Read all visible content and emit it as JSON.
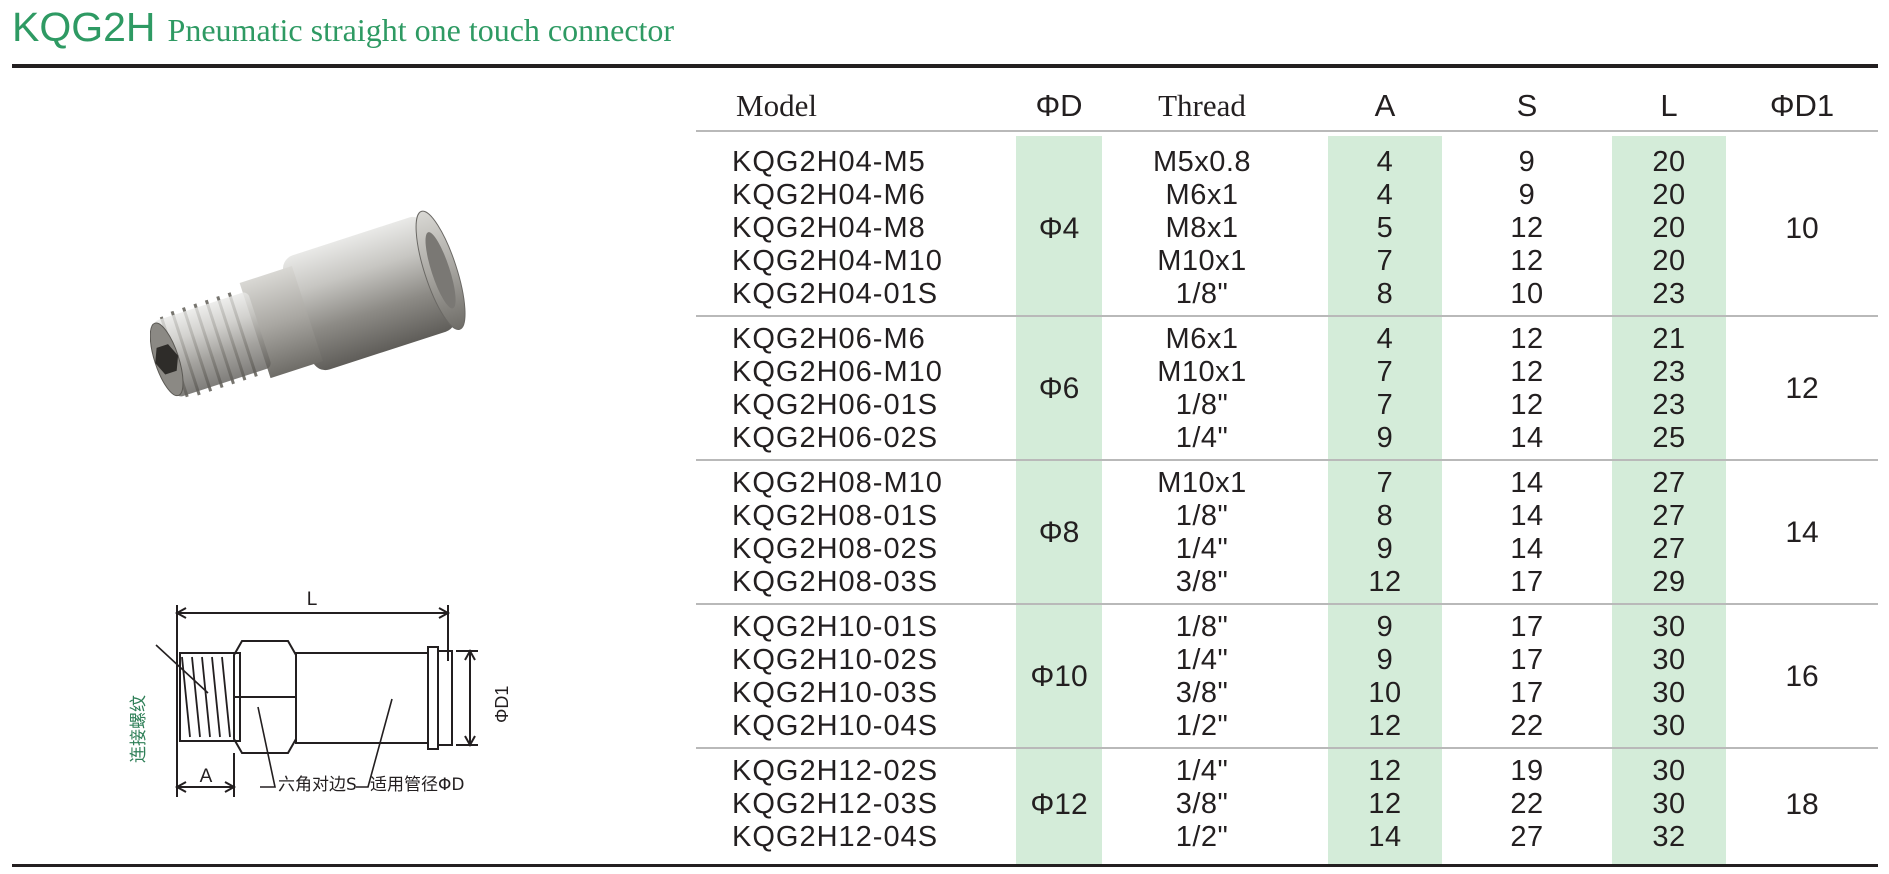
{
  "title": {
    "code": "KQG2H",
    "description": "Pneumatic straight one touch connector"
  },
  "photo": {
    "alt": "Nickel-plated brass straight connector with hex body and push-in tube fitting"
  },
  "drawing": {
    "label_L": "L",
    "label_A": "A",
    "label_D1": "ΦD1",
    "label_thread": "连接螺纹",
    "label_hex": "六角对边S",
    "label_tube": "适用管径ΦD"
  },
  "table": {
    "headers": [
      "Model",
      "ΦD",
      "Thread",
      "A",
      "S",
      "L",
      "ΦD1"
    ],
    "groups": [
      {
        "d": "Φ4",
        "d1": "10",
        "rows": [
          {
            "model": "KQG2H04-M5",
            "thread": "M5x0.8",
            "a": "4",
            "s": "9",
            "l": "20"
          },
          {
            "model": "KQG2H04-M6",
            "thread": "M6x1",
            "a": "4",
            "s": "9",
            "l": "20"
          },
          {
            "model": "KQG2H04-M8",
            "thread": "M8x1",
            "a": "5",
            "s": "12",
            "l": "20"
          },
          {
            "model": "KQG2H04-M10",
            "thread": "M10x1",
            "a": "7",
            "s": "12",
            "l": "20"
          },
          {
            "model": "KQG2H04-01S",
            "thread": "1/8\"",
            "a": "8",
            "s": "10",
            "l": "23"
          }
        ]
      },
      {
        "d": "Φ6",
        "d1": "12",
        "rows": [
          {
            "model": "KQG2H06-M6",
            "thread": "M6x1",
            "a": "4",
            "s": "12",
            "l": "21"
          },
          {
            "model": "KQG2H06-M10",
            "thread": "M10x1",
            "a": "7",
            "s": "12",
            "l": "23"
          },
          {
            "model": "KQG2H06-01S",
            "thread": "1/8\"",
            "a": "7",
            "s": "12",
            "l": "23"
          },
          {
            "model": "KQG2H06-02S",
            "thread": "1/4\"",
            "a": "9",
            "s": "14",
            "l": "25"
          }
        ]
      },
      {
        "d": "Φ8",
        "d1": "14",
        "rows": [
          {
            "model": "KQG2H08-M10",
            "thread": "M10x1",
            "a": "7",
            "s": "14",
            "l": "27"
          },
          {
            "model": "KQG2H08-01S",
            "thread": "1/8\"",
            "a": "8",
            "s": "14",
            "l": "27"
          },
          {
            "model": "KQG2H08-02S",
            "thread": "1/4\"",
            "a": "9",
            "s": "14",
            "l": "27"
          },
          {
            "model": "KQG2H08-03S",
            "thread": "3/8\"",
            "a": "12",
            "s": "17",
            "l": "29"
          }
        ]
      },
      {
        "d": "Φ10",
        "d1": "16",
        "rows": [
          {
            "model": "KQG2H10-01S",
            "thread": "1/8\"",
            "a": "9",
            "s": "17",
            "l": "30"
          },
          {
            "model": "KQG2H10-02S",
            "thread": "1/4\"",
            "a": "9",
            "s": "17",
            "l": "30"
          },
          {
            "model": "KQG2H10-03S",
            "thread": "3/8\"",
            "a": "10",
            "s": "17",
            "l": "30"
          },
          {
            "model": "KQG2H10-04S",
            "thread": "1/2\"",
            "a": "12",
            "s": "22",
            "l": "30"
          }
        ]
      },
      {
        "d": "Φ12",
        "d1": "18",
        "rows": [
          {
            "model": "KQG2H12-02S",
            "thread": "1/4\"",
            "a": "12",
            "s": "19",
            "l": "30"
          },
          {
            "model": "KQG2H12-03S",
            "thread": "3/8\"",
            "a": "12",
            "s": "22",
            "l": "30"
          },
          {
            "model": "KQG2H12-04S",
            "thread": "1/2\"",
            "a": "14",
            "s": "27",
            "l": "32"
          }
        ]
      }
    ]
  },
  "colors": {
    "title_green": "#2e9a63",
    "column_shade": "#d4ecd9",
    "rule": "#231f20",
    "row_divider": "#b9b9b9"
  }
}
